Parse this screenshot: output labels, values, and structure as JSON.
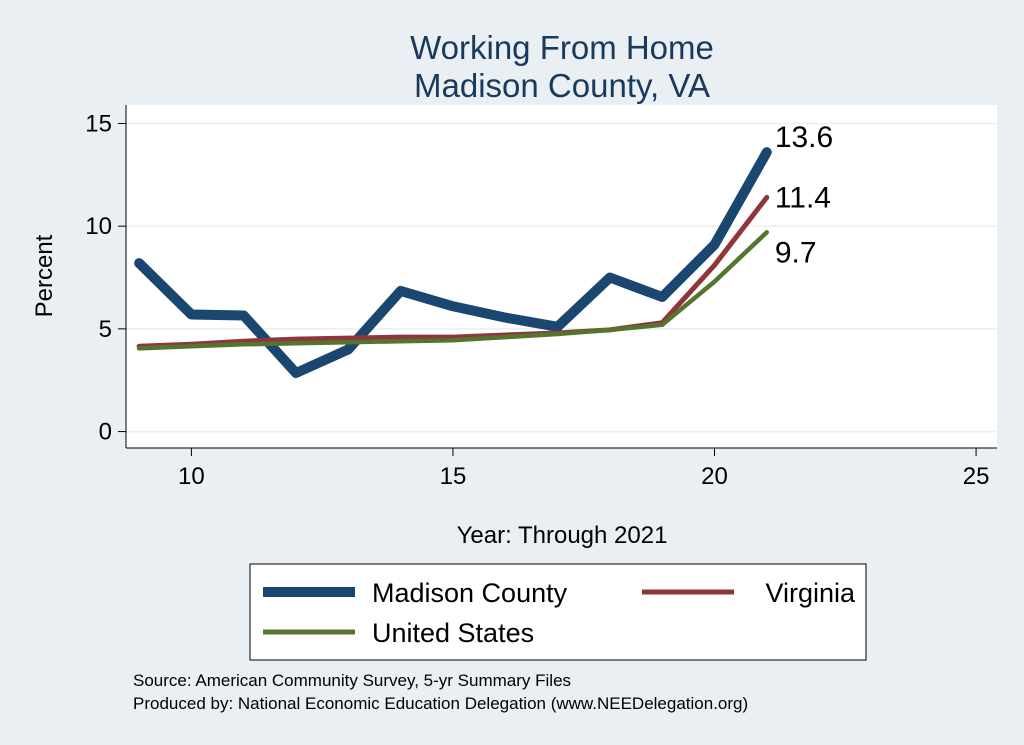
{
  "chart_data": {
    "type": "line",
    "title": [
      "Working From Home",
      "Madison County, VA"
    ],
    "xlabel": "Year: Through 2021",
    "ylabel": "Percent",
    "xlim": [
      8.75,
      25.4
    ],
    "ylim": [
      -0.8,
      15.9
    ],
    "xticks": [
      10,
      15,
      20,
      25
    ],
    "yticks": [
      0,
      5,
      10,
      15
    ],
    "grid": true,
    "legend_position": "bottom",
    "x": [
      9,
      10,
      11,
      12,
      13,
      14,
      15,
      16,
      17,
      18,
      19,
      20,
      21
    ],
    "series": [
      {
        "name": "Madison County",
        "color": "#1a476f",
        "values": [
          8.2,
          5.7,
          5.65,
          2.85,
          4.0,
          6.85,
          6.1,
          5.55,
          5.1,
          7.5,
          6.55,
          9.1,
          13.6
        ],
        "end_label": "13.6"
      },
      {
        "name": "Virginia",
        "color": "#90353b",
        "values": [
          4.15,
          4.25,
          4.4,
          4.5,
          4.55,
          4.6,
          4.6,
          4.7,
          4.8,
          4.95,
          5.3,
          8.1,
          11.4
        ],
        "end_label": "11.4"
      },
      {
        "name": "United States",
        "color": "#55752f",
        "values": [
          4.05,
          4.15,
          4.25,
          4.3,
          4.35,
          4.4,
          4.45,
          4.6,
          4.75,
          4.95,
          5.2,
          7.3,
          9.7
        ],
        "end_label": "9.7"
      }
    ],
    "source": [
      "Source: American Community Survey, 5-yr Summary Files",
      "Produced by: National Economic Education Delegation (www.NEEDelegation.org)"
    ]
  },
  "colors": {
    "background": "#e9eff3",
    "plot_area": "#ffffff",
    "grid": "#e9eff3",
    "title": "#1a3a5c"
  }
}
